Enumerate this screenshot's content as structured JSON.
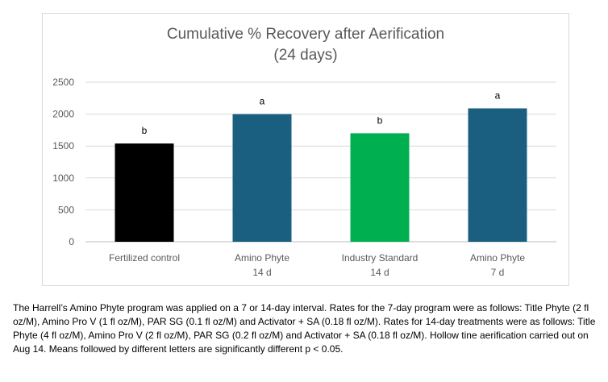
{
  "chart_data": {
    "type": "bar",
    "title": "Cumulative % Recovery after Aerification",
    "subtitle": "(24 days)",
    "categories": [
      [
        "Fertilized control"
      ],
      [
        "Amino Phyte",
        "14 d"
      ],
      [
        "Industry Standard",
        "14 d"
      ],
      [
        "Amino Phyte",
        "7 d"
      ]
    ],
    "values": [
      1540,
      2000,
      1700,
      2090
    ],
    "significance_letters": [
      "b",
      "a",
      "b",
      "a"
    ],
    "bar_colors": [
      "#000000",
      "#1a5f7f",
      "#00b050",
      "#1a5f7f"
    ],
    "ylim": [
      0,
      2500
    ],
    "yticks": [
      0,
      500,
      1000,
      1500,
      2000,
      2500
    ],
    "grid": true,
    "legend": "none"
  },
  "caption": "The Harrell’s Amino Phyte program was applied on a 7 or 14-day interval. Rates for the 7-day program were as follows: Title Phyte (2 fl oz/M), Amino Pro V (1 fl oz/M), PAR SG (0.1 fl oz/M) and Activator + SA (0.18 fl oz/M). Rates for 14-day treatments were as follows: Title Phyte (4 fl oz/M), Amino Pro V (2 fl oz/M), PAR SG (0.2 fl oz/M) and Activator + SA (0.18 fl oz/M). Hollow tine aerification carried out on Aug 14. Means followed by different letters are significantly different p < 0.05."
}
